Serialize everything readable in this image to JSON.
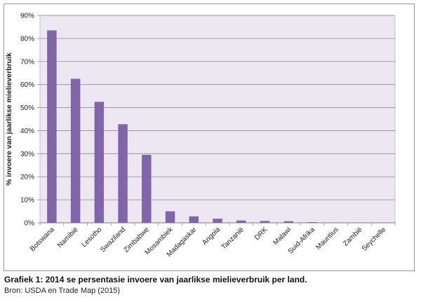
{
  "chart_data": {
    "type": "bar",
    "ylabel": "% invoere van jaarlikse mielieverbruik",
    "xlabel": "",
    "title": "",
    "categories": [
      "Botswana",
      "Namibië",
      "Lesotho",
      "Swaziland",
      "Zimbabwe",
      "Mosambiek",
      "Madagaskar",
      "Angola",
      "Tanzanië",
      "DRK",
      "Malawi",
      "Suid-Afrika",
      "Mauritius",
      "Zambië",
      "Seychelle"
    ],
    "values": [
      83.5,
      62.5,
      52.5,
      42.8,
      29.5,
      5.0,
      2.8,
      1.8,
      1.0,
      0.8,
      0.7,
      0.3,
      0.05,
      0.05,
      0.05
    ],
    "ylim": [
      0,
      90
    ],
    "yticks": [
      "0%",
      "10%",
      "20%",
      "30%",
      "40%",
      "50%",
      "60%",
      "70%",
      "80%",
      "90%"
    ],
    "grid": true,
    "legend": "none",
    "bar_color": "#8065a8",
    "plot_bg": "#ece7f1"
  },
  "caption": "Grafiek 1: 2014 se persentasie invoere van jaarlikse mielieverbruik per land.",
  "source": "Bron: USDA en Trade Map (2015)"
}
